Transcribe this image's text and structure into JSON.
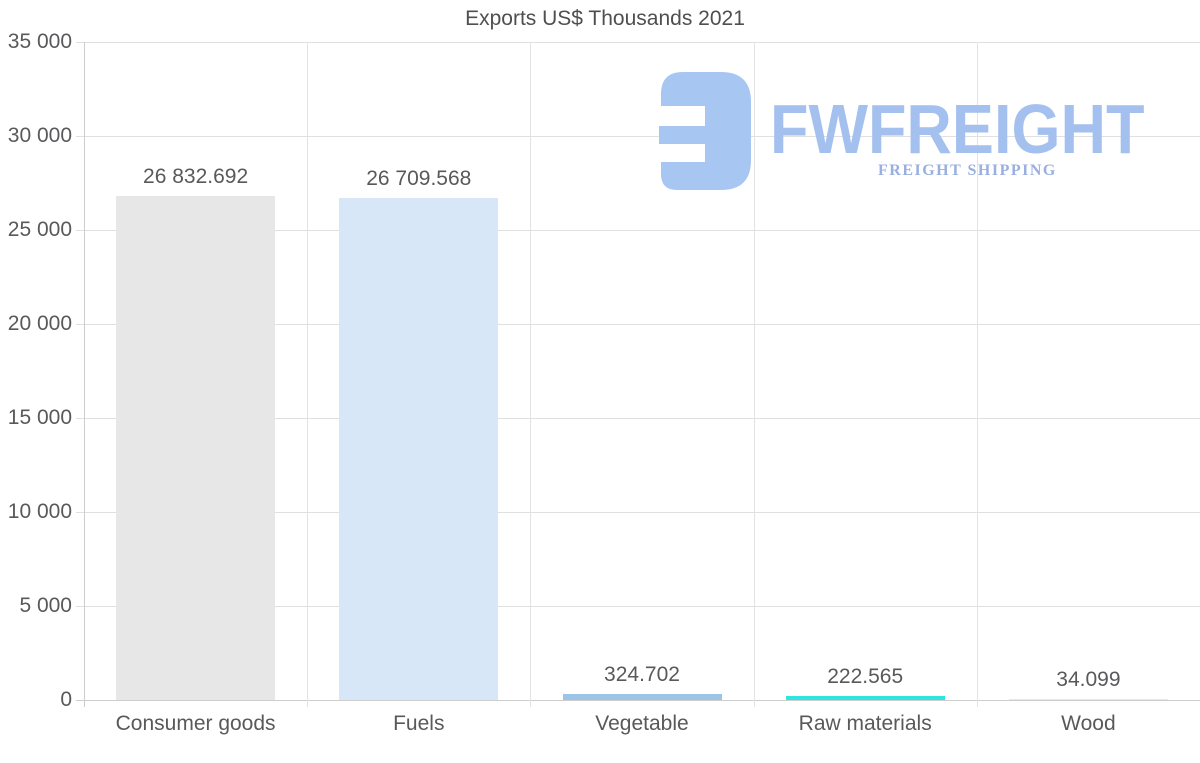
{
  "chart_data": {
    "type": "bar",
    "title": "Exports US$ Thousands 2021",
    "categories": [
      "Consumer goods",
      "Fuels",
      "Vegetable",
      "Raw materials",
      "Wood"
    ],
    "values": [
      26832.692,
      26709.568,
      324.702,
      222.565,
      34.099
    ],
    "value_labels": [
      "26 832.692",
      "26 709.568",
      "324.702",
      "222.565",
      "34.099"
    ],
    "bar_colors": [
      "#e7e7e7",
      "#d7e7f8",
      "#9dc3e6",
      "#30e5e0",
      "#e7e7e7"
    ],
    "ylim": [
      0,
      35000
    ],
    "yticks": [
      {
        "value": 0,
        "label": "0"
      },
      {
        "value": 5000,
        "label": "5 000"
      },
      {
        "value": 10000,
        "label": "10 000"
      },
      {
        "value": 15000,
        "label": "15 000"
      },
      {
        "value": 20000,
        "label": "20 000"
      },
      {
        "value": 25000,
        "label": "25 000"
      },
      {
        "value": 30000,
        "label": "30 000"
      },
      {
        "value": 35000,
        "label": "35 000"
      }
    ],
    "xlabel": "",
    "ylabel": "",
    "grid": "both",
    "legend": "none"
  },
  "logo": {
    "brand": "FWFREIGHT",
    "tagline": "FREIGHT SHIPPING",
    "mark_color": "#a8c6f2",
    "brand_color": "#a4c0ee",
    "tagline_color": "#99afdf"
  },
  "colors": {
    "background": "#ffffff",
    "gridline": "#e0e0e0",
    "axis_line": "#cdcdcd",
    "text": "#59595b",
    "title_text": "#4f4f51"
  }
}
